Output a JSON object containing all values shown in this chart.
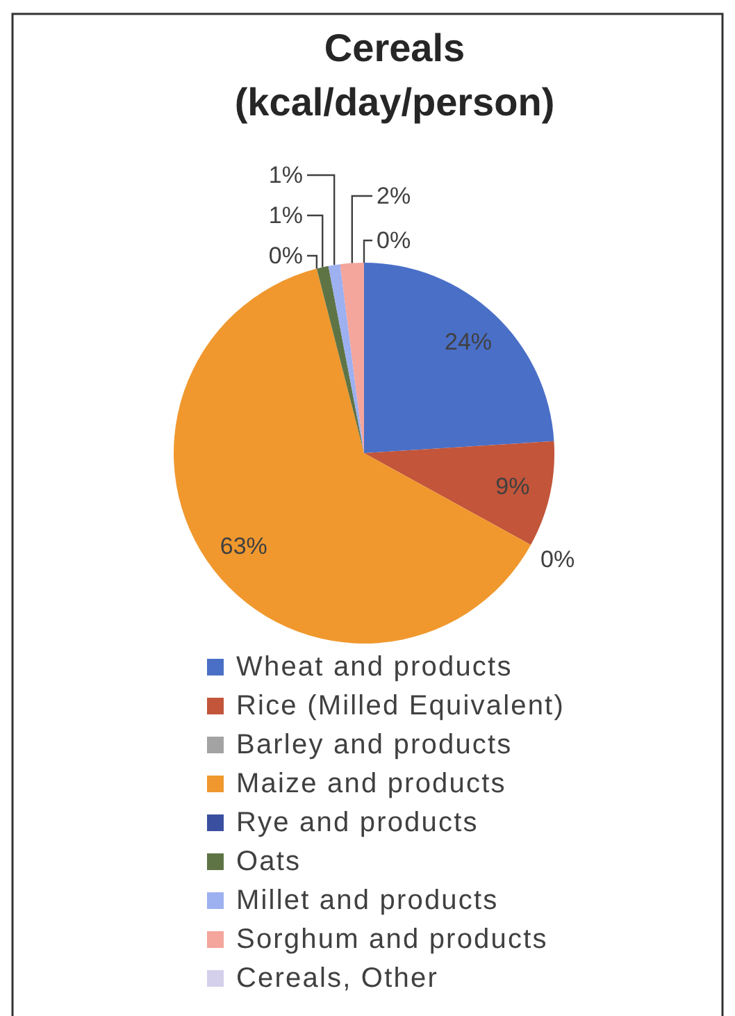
{
  "chart_data": {
    "type": "pie",
    "title": "Cereals (kcal/day/person)",
    "categories": [
      "Wheat and products",
      "Rice (Milled Equivalent)",
      "Barley and products",
      "Maize and products",
      "Rye and products",
      "Oats",
      "Millet and products",
      "Sorghum and products",
      "Cereals, Other"
    ],
    "values": [
      24,
      9,
      0,
      63,
      0,
      1,
      1,
      2,
      0
    ],
    "value_labels": [
      "24%",
      "9%",
      "0%",
      "63%",
      "0%",
      "1%",
      "1%",
      "2%",
      "0%"
    ],
    "colors": [
      "#4a6fc7",
      "#c2553a",
      "#a3a3a3",
      "#f0982e",
      "#3a4fa0",
      "#5e7445",
      "#9db0f0",
      "#f4a59c",
      "#d4d0ec"
    ],
    "legend": "bottom"
  }
}
